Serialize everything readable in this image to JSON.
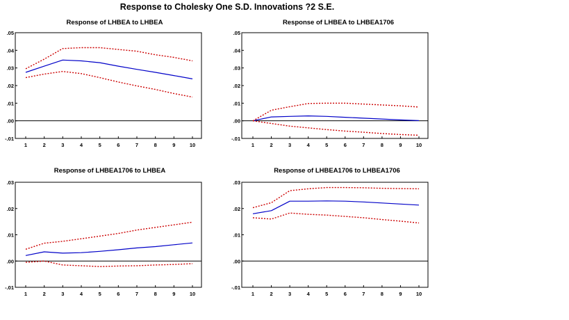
{
  "figure": {
    "title": "Response to Cholesky One S.D. Innovations ?2 S.E."
  },
  "chart_data": [
    {
      "type": "line",
      "title": "Response of LHBEA to LHBEA",
      "x": [
        1,
        2,
        3,
        4,
        5,
        6,
        7,
        8,
        9,
        10
      ],
      "xticks": [
        "1",
        "2",
        "3",
        "4",
        "5",
        "6",
        "7",
        "8",
        "9",
        "10"
      ],
      "yticks": [
        ".05",
        ".04",
        ".03",
        ".02",
        ".01",
        ".00",
        "-.01"
      ],
      "ylim": [
        -0.01,
        0.05
      ],
      "series": [
        {
          "name": "response",
          "color": "#0000c8",
          "style": "solid",
          "values": [
            0.0275,
            0.031,
            0.0345,
            0.034,
            0.033,
            0.031,
            0.0292,
            0.0275,
            0.0257,
            0.0238
          ]
        },
        {
          "name": "upper 2 S.E.",
          "color": "#cc0000",
          "style": "dotted",
          "values": [
            0.0295,
            0.035,
            0.041,
            0.0415,
            0.0415,
            0.0405,
            0.0395,
            0.0375,
            0.036,
            0.034
          ]
        },
        {
          "name": "lower 2 S.E.",
          "color": "#cc0000",
          "style": "dotted",
          "values": [
            0.0245,
            0.0265,
            0.028,
            0.0268,
            0.0245,
            0.022,
            0.0198,
            0.0178,
            0.0155,
            0.0135
          ]
        }
      ]
    },
    {
      "type": "line",
      "title": "Response of LHBEA to LHBEA1706",
      "x": [
        1,
        2,
        3,
        4,
        5,
        6,
        7,
        8,
        9,
        10
      ],
      "xticks": [
        "1",
        "2",
        "3",
        "4",
        "5",
        "6",
        "7",
        "8",
        "9",
        "10"
      ],
      "yticks": [
        ".05",
        ".04",
        ".03",
        ".02",
        ".01",
        ".00",
        "-.01"
      ],
      "ylim": [
        -0.01,
        0.05
      ],
      "series": [
        {
          "name": "response",
          "color": "#0000c8",
          "style": "solid",
          "values": [
            0.0,
            0.0022,
            0.0025,
            0.0028,
            0.0025,
            0.002,
            0.0015,
            0.001,
            0.0005,
            0.0001
          ]
        },
        {
          "name": "upper 2 S.E.",
          "color": "#cc0000",
          "style": "dotted",
          "values": [
            0.0,
            0.006,
            0.008,
            0.0098,
            0.01,
            0.01,
            0.0095,
            0.009,
            0.0085,
            0.0078
          ]
        },
        {
          "name": "lower 2 S.E.",
          "color": "#cc0000",
          "style": "dotted",
          "values": [
            0.0,
            -0.0015,
            -0.003,
            -0.004,
            -0.005,
            -0.0058,
            -0.0065,
            -0.0072,
            -0.0078,
            -0.0082
          ]
        }
      ]
    },
    {
      "type": "line",
      "title": "Response of LHBEA1706 to LHBEA",
      "x": [
        1,
        2,
        3,
        4,
        5,
        6,
        7,
        8,
        9,
        10
      ],
      "xticks": [
        "1",
        "2",
        "3",
        "4",
        "5",
        "6",
        "7",
        "8",
        "9",
        "10"
      ],
      "yticks": [
        ".03",
        ".02",
        ".01",
        ".00",
        "-.01"
      ],
      "ylim": [
        -0.01,
        0.03
      ],
      "series": [
        {
          "name": "response",
          "color": "#0000c8",
          "style": "solid",
          "values": [
            0.0021,
            0.0035,
            0.003,
            0.0032,
            0.0037,
            0.0043,
            0.005,
            0.0055,
            0.0062,
            0.0069
          ]
        },
        {
          "name": "upper 2 S.E.",
          "color": "#cc0000",
          "style": "dotted",
          "values": [
            0.0045,
            0.0068,
            0.0075,
            0.0085,
            0.0095,
            0.0105,
            0.0118,
            0.0128,
            0.0138,
            0.0148
          ]
        },
        {
          "name": "lower 2 S.E.",
          "color": "#cc0000",
          "style": "dotted",
          "values": [
            -0.0005,
            0.0,
            -0.0015,
            -0.0018,
            -0.0021,
            -0.0019,
            -0.0018,
            -0.0015,
            -0.0013,
            -0.001
          ]
        }
      ]
    },
    {
      "type": "line",
      "title": "Response of LHBEA1706 to LHBEA1706",
      "x": [
        1,
        2,
        3,
        4,
        5,
        6,
        7,
        8,
        9,
        10
      ],
      "xticks": [
        "1",
        "2",
        "3",
        "4",
        "5",
        "6",
        "7",
        "8",
        "9",
        "10"
      ],
      "yticks": [
        ".03",
        ".02",
        ".01",
        ".00",
        "-.01"
      ],
      "ylim": [
        -0.01,
        0.03
      ],
      "series": [
        {
          "name": "response",
          "color": "#0000c8",
          "style": "solid",
          "values": [
            0.018,
            0.0192,
            0.0228,
            0.0228,
            0.0229,
            0.0228,
            0.0225,
            0.0221,
            0.0217,
            0.0213
          ]
        },
        {
          "name": "upper 2 S.E.",
          "color": "#cc0000",
          "style": "dotted",
          "values": [
            0.0203,
            0.0222,
            0.0268,
            0.0275,
            0.028,
            0.028,
            0.0279,
            0.0277,
            0.0276,
            0.0275
          ]
        },
        {
          "name": "lower 2 S.E.",
          "color": "#cc0000",
          "style": "dotted",
          "values": [
            0.0165,
            0.016,
            0.0183,
            0.0178,
            0.0175,
            0.017,
            0.0165,
            0.0158,
            0.0152,
            0.0145
          ]
        }
      ]
    }
  ]
}
